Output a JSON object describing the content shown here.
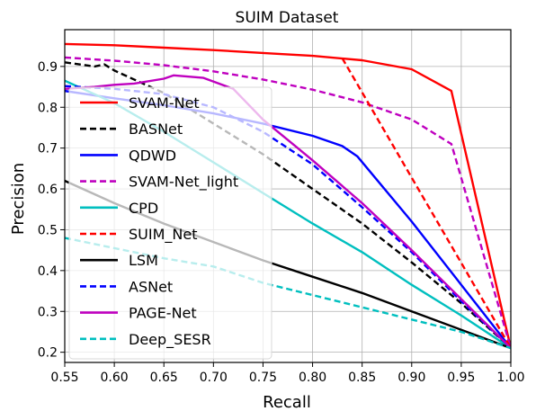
{
  "chart_data": {
    "type": "line",
    "title": "SUIM Dataset",
    "xlabel": "Recall",
    "ylabel": "Precision",
    "xlim": [
      0.55,
      1.0
    ],
    "ylim": [
      0.175,
      0.99
    ],
    "xticks": [
      0.55,
      0.6,
      0.65,
      0.7,
      0.75,
      0.8,
      0.85,
      0.9,
      0.95,
      1.0
    ],
    "xtick_labels": [
      "0.55",
      "0.60",
      "0.65",
      "0.70",
      "0.75",
      "0.80",
      "0.85",
      "0.90",
      "0.95",
      "1.00"
    ],
    "yticks": [
      0.2,
      0.3,
      0.4,
      0.5,
      0.6,
      0.7,
      0.8,
      0.9
    ],
    "ytick_labels": [
      "0.2",
      "0.3",
      "0.4",
      "0.5",
      "0.6",
      "0.7",
      "0.8",
      "0.9"
    ],
    "grid": true,
    "legend_position": "upper-left",
    "series": [
      {
        "name": "SVAM-Net",
        "color": "#ff0000",
        "dash": "solid",
        "x": [
          0.55,
          0.6,
          0.65,
          0.7,
          0.75,
          0.8,
          0.85,
          0.9,
          0.94,
          1.0
        ],
        "y": [
          0.955,
          0.952,
          0.946,
          0.94,
          0.933,
          0.926,
          0.915,
          0.893,
          0.84,
          0.21
        ]
      },
      {
        "name": "BASNet",
        "color": "#000000",
        "dash": "dashed",
        "x": [
          0.55,
          0.58,
          0.59,
          0.6,
          0.65,
          0.7,
          0.75,
          0.8,
          0.85,
          0.9,
          0.95,
          1.0
        ],
        "y": [
          0.91,
          0.9,
          0.905,
          0.89,
          0.835,
          0.76,
          0.685,
          0.6,
          0.515,
          0.42,
          0.32,
          0.21
        ]
      },
      {
        "name": "QDWD",
        "color": "#0000ff",
        "dash": "solid",
        "x": [
          0.55,
          0.6,
          0.65,
          0.7,
          0.75,
          0.8,
          0.83,
          0.845,
          0.9,
          0.95,
          1.0
        ],
        "y": [
          0.84,
          0.822,
          0.805,
          0.785,
          0.76,
          0.73,
          0.705,
          0.68,
          0.52,
          0.365,
          0.21
        ]
      },
      {
        "name": "SVAM-Net_light",
        "color": "#bf00bf",
        "dash": "dashed",
        "x": [
          0.55,
          0.6,
          0.65,
          0.7,
          0.75,
          0.8,
          0.85,
          0.9,
          0.94,
          1.0
        ],
        "y": [
          0.922,
          0.914,
          0.903,
          0.888,
          0.868,
          0.843,
          0.812,
          0.77,
          0.71,
          0.21
        ]
      },
      {
        "name": "CPD",
        "color": "#00bfbf",
        "dash": "solid",
        "x": [
          0.55,
          0.6,
          0.65,
          0.7,
          0.75,
          0.8,
          0.85,
          0.9,
          0.95,
          1.0
        ],
        "y": [
          0.865,
          0.81,
          0.74,
          0.665,
          0.59,
          0.515,
          0.445,
          0.365,
          0.29,
          0.21
        ]
      },
      {
        "name": "SUIM_Net",
        "color": "#ff0000",
        "dash": "dashed",
        "x": [
          0.83,
          1.0
        ],
        "y": [
          0.92,
          0.21
        ]
      },
      {
        "name": "LSM",
        "color": "#000000",
        "dash": "solid",
        "x": [
          0.55,
          0.6,
          0.65,
          0.7,
          0.75,
          0.8,
          0.85,
          0.9,
          0.95,
          1.0
        ],
        "y": [
          0.62,
          0.565,
          0.515,
          0.47,
          0.425,
          0.385,
          0.345,
          0.3,
          0.255,
          0.21
        ]
      },
      {
        "name": "ASNet",
        "color": "#0000ff",
        "dash": "dashed",
        "x": [
          0.55,
          0.6,
          0.65,
          0.7,
          0.75,
          0.8,
          0.85,
          0.9,
          0.95,
          1.0
        ],
        "y": [
          0.852,
          0.845,
          0.832,
          0.8,
          0.74,
          0.66,
          0.555,
          0.445,
          0.325,
          0.21
        ]
      },
      {
        "name": "PAGE-Net",
        "color": "#bf00bf",
        "dash": "solid",
        "x": [
          0.55,
          0.58,
          0.6,
          0.62,
          0.65,
          0.66,
          0.69,
          0.72,
          0.75,
          0.78,
          0.8,
          0.85,
          0.9,
          0.95,
          1.0
        ],
        "y": [
          0.845,
          0.85,
          0.855,
          0.858,
          0.87,
          0.878,
          0.872,
          0.845,
          0.77,
          0.71,
          0.67,
          0.565,
          0.45,
          0.33,
          0.21
        ]
      },
      {
        "name": "Deep_SESR",
        "color": "#00bfbf",
        "dash": "dashed",
        "x": [
          0.55,
          0.6,
          0.65,
          0.7,
          0.75,
          0.8,
          0.85,
          0.9,
          0.95,
          1.0
        ],
        "y": [
          0.48,
          0.455,
          0.43,
          0.41,
          0.37,
          0.34,
          0.31,
          0.28,
          0.25,
          0.21
        ]
      }
    ]
  }
}
